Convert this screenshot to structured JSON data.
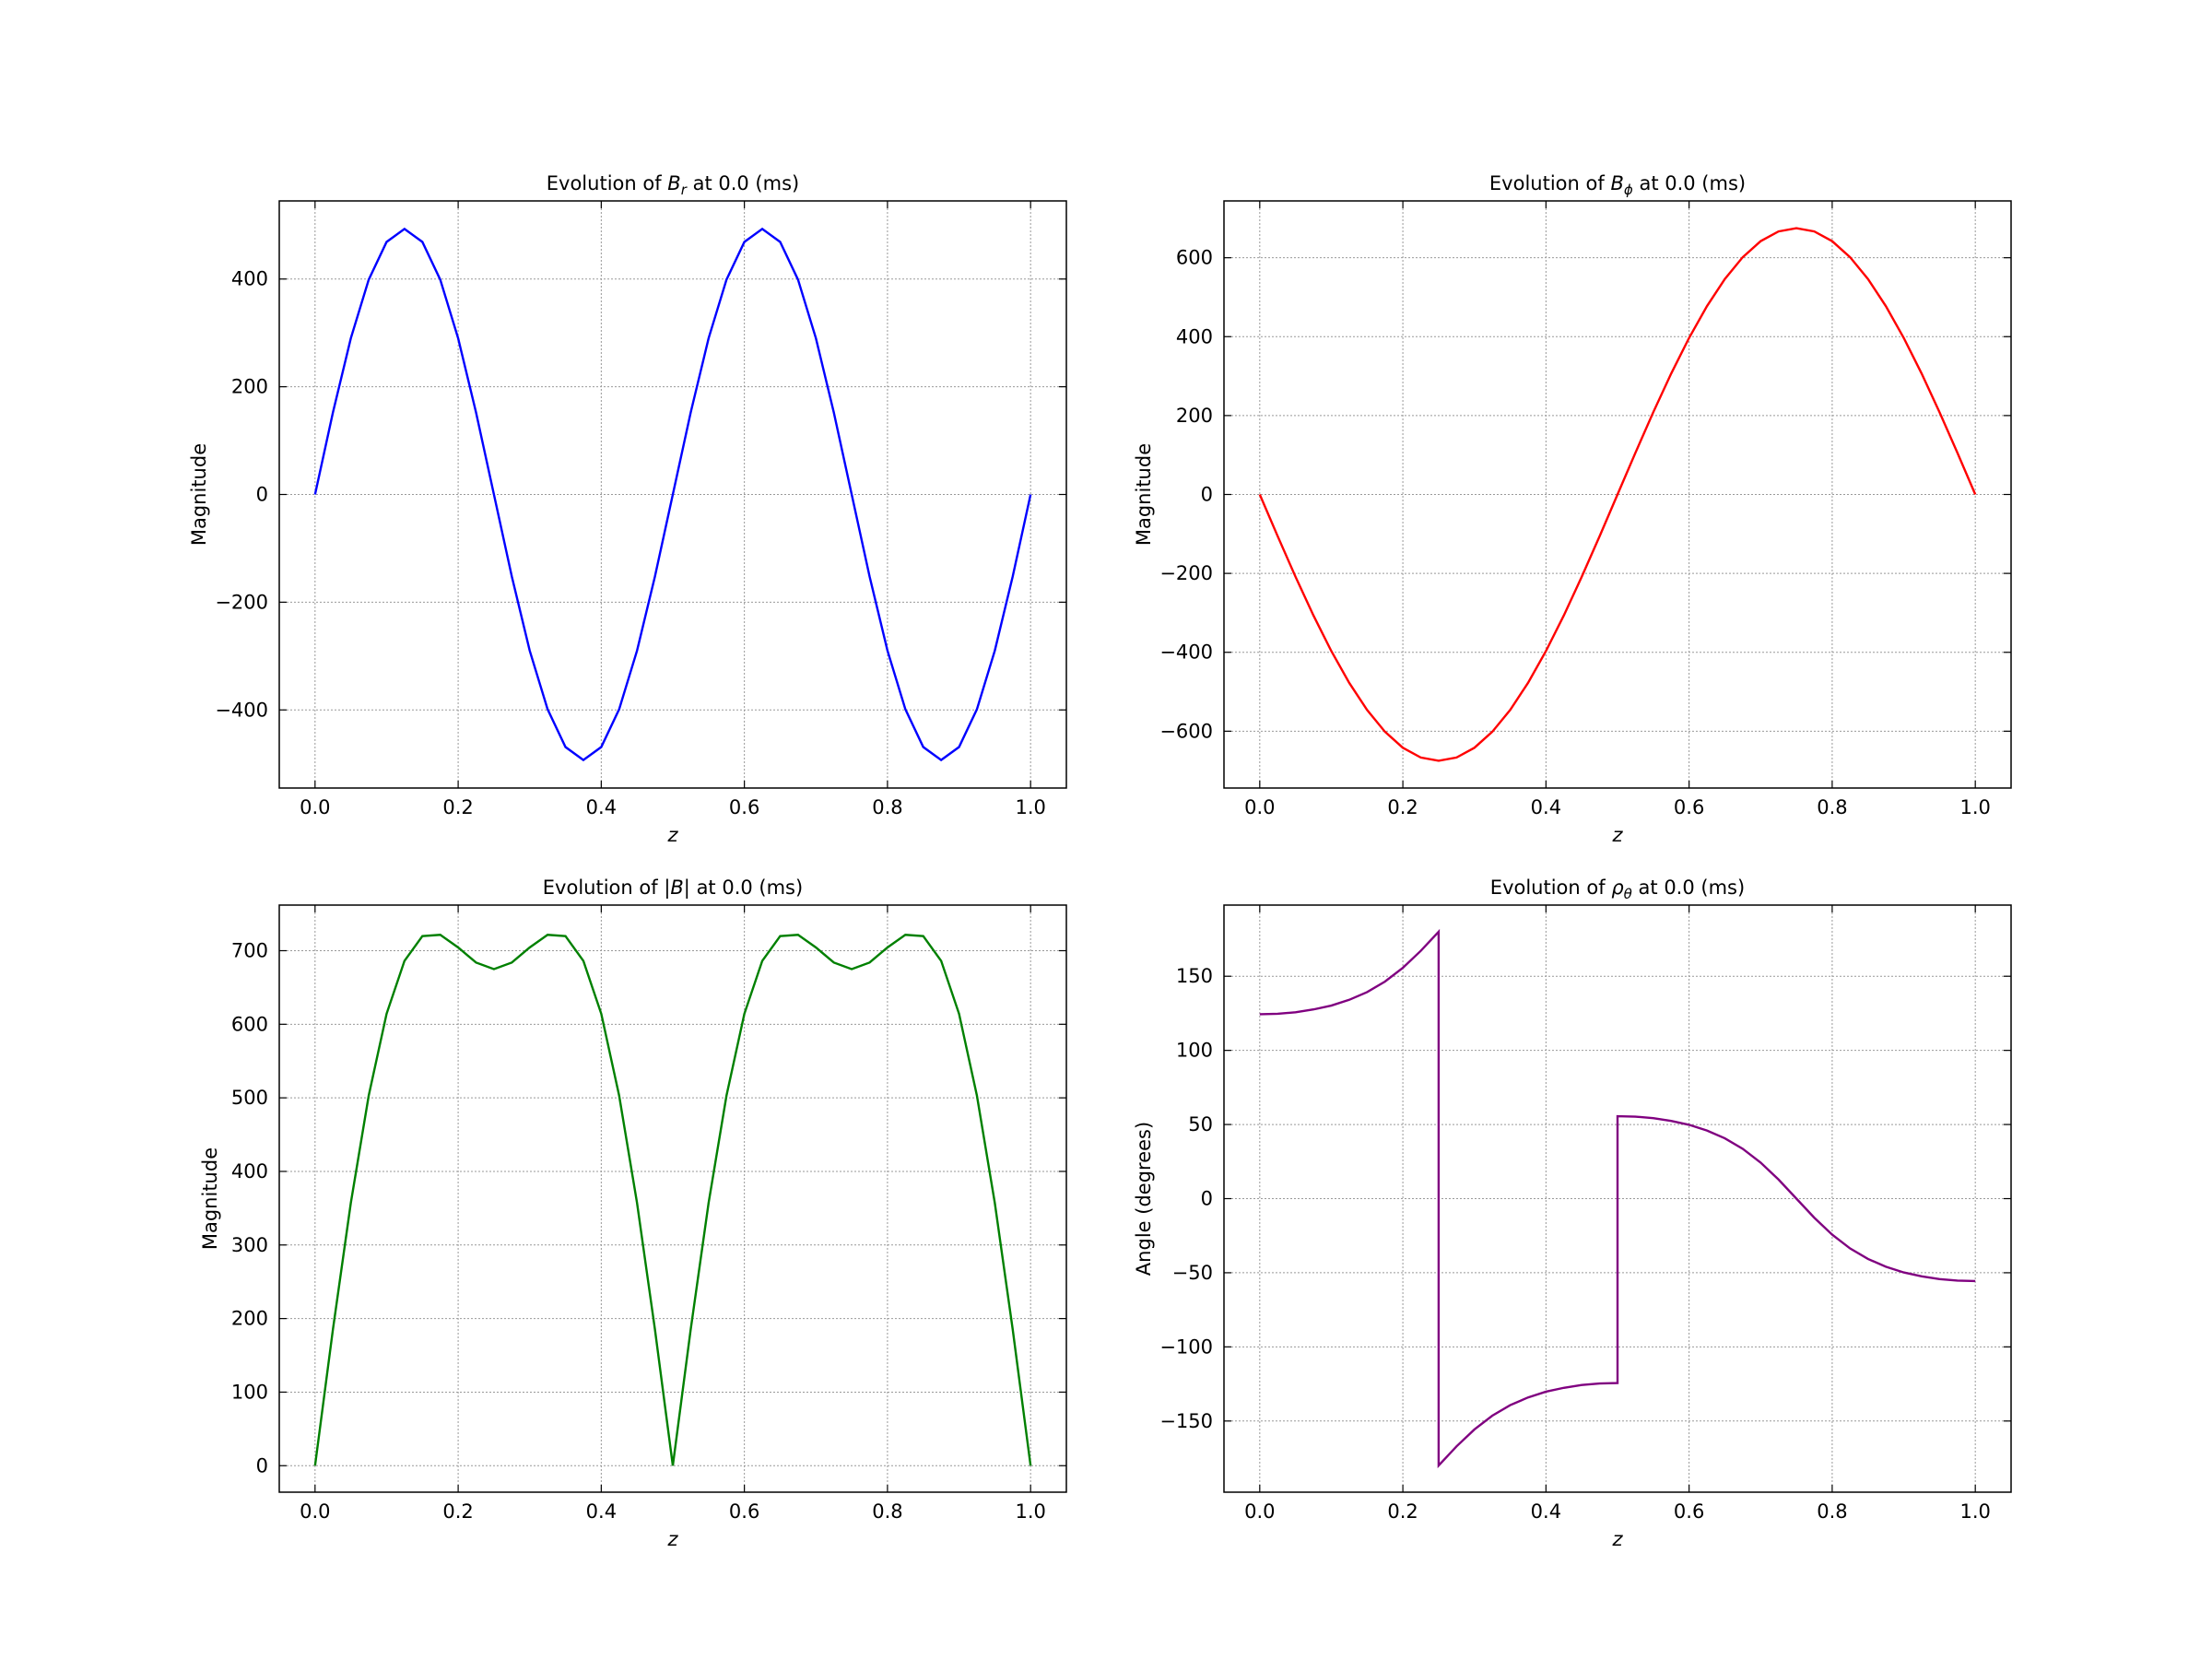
{
  "chart_data": [
    {
      "type": "line",
      "title": {
        "prefix": "Evolution of",
        "symbol": "B",
        "subscript": "r",
        "suffix": "at 0.0 (ms)"
      },
      "xlabel": "z",
      "ylabel": "Magnitude",
      "x": [
        0,
        0.025,
        0.05,
        0.075,
        0.1,
        0.125,
        0.15,
        0.175,
        0.2,
        0.225,
        0.25,
        0.275,
        0.3,
        0.325,
        0.35,
        0.375,
        0.4,
        0.425,
        0.45,
        0.475,
        0.5,
        0.525,
        0.55,
        0.575,
        0.6,
        0.625,
        0.65,
        0.675,
        0.7,
        0.725,
        0.75,
        0.775,
        0.8,
        0.825,
        0.85,
        0.875,
        0.9,
        0.925,
        0.95,
        0.975,
        1
      ],
      "series": [
        {
          "color": "#0000ff",
          "values": [
            0,
            152.3,
            289.9,
            398.8,
            468.9,
            493,
            468.9,
            398.8,
            289.9,
            152.3,
            0,
            -152.3,
            -289.9,
            -398.8,
            -468.9,
            -493,
            -468.9,
            -398.8,
            -289.9,
            -152.3,
            0,
            152.3,
            289.9,
            398.8,
            468.9,
            493,
            468.9,
            398.8,
            289.9,
            152.3,
            0,
            -152.3,
            -289.9,
            -398.8,
            -468.9,
            -493,
            -468.9,
            -398.8,
            -289.9,
            -152.3,
            0
          ]
        }
      ],
      "xlim": [
        -0.05,
        1.05
      ],
      "ylim": [
        -545,
        545
      ],
      "xticks": [
        {
          "value": 0,
          "label": "0.0"
        },
        0.2,
        0.4,
        0.6,
        0.8,
        {
          "value": 1,
          "label": "1.0"
        }
      ],
      "yticks": [
        {
          "value": -400,
          "label": "−400"
        },
        {
          "value": -200,
          "label": "−200"
        },
        0,
        200,
        400
      ],
      "grid": true
    },
    {
      "type": "line",
      "title": {
        "prefix": "Evolution of",
        "symbol": "B",
        "subscript": "ϕ",
        "suffix": "at 0.0 (ms)"
      },
      "xlabel": "z",
      "ylabel": "Magnitude",
      "x": [
        0,
        0.025,
        0.05,
        0.075,
        0.1,
        0.125,
        0.15,
        0.175,
        0.2,
        0.225,
        0.25,
        0.275,
        0.3,
        0.325,
        0.35,
        0.375,
        0.4,
        0.425,
        0.45,
        0.475,
        0.5,
        0.525,
        0.55,
        0.575,
        0.6,
        0.625,
        0.65,
        0.675,
        0.7,
        0.725,
        0.75,
        0.775,
        0.8,
        0.825,
        0.85,
        0.875,
        0.9,
        0.925,
        0.95,
        0.975,
        1
      ],
      "series": [
        {
          "color": "#ff0000",
          "values": [
            0,
            -105.6,
            -208.6,
            -306.5,
            -396.8,
            -477.3,
            -546.1,
            -601.4,
            -642,
            -666.7,
            -675,
            -666.7,
            -642,
            -601.4,
            -546.1,
            -477.3,
            -396.8,
            -306.5,
            -208.6,
            -105.6,
            0,
            105.6,
            208.6,
            306.5,
            396.8,
            477.3,
            546.1,
            601.4,
            642,
            666.7,
            675,
            666.7,
            642,
            601.4,
            546.1,
            477.3,
            396.8,
            306.5,
            208.6,
            105.6,
            0
          ]
        }
      ],
      "xlim": [
        -0.05,
        1.05
      ],
      "ylim": [
        -744,
        744
      ],
      "xticks": [
        {
          "value": 0,
          "label": "0.0"
        },
        0.2,
        0.4,
        0.6,
        0.8,
        {
          "value": 1,
          "label": "1.0"
        }
      ],
      "yticks": [
        {
          "value": -600,
          "label": "−600"
        },
        {
          "value": -400,
          "label": "−400"
        },
        {
          "value": -200,
          "label": "−200"
        },
        0,
        200,
        400,
        600
      ],
      "grid": true
    },
    {
      "type": "line",
      "title": {
        "prefix": "Evolution of",
        "symbol": "|B|",
        "suffix": "at 0.0 (ms)"
      },
      "xlabel": "z",
      "ylabel": "Magnitude",
      "x": [
        0,
        0.025,
        0.05,
        0.075,
        0.1,
        0.125,
        0.15,
        0.175,
        0.2,
        0.225,
        0.25,
        0.275,
        0.3,
        0.325,
        0.35,
        0.375,
        0.4,
        0.425,
        0.45,
        0.475,
        0.5,
        0.525,
        0.55,
        0.575,
        0.6,
        0.625,
        0.65,
        0.675,
        0.7,
        0.725,
        0.75,
        0.775,
        0.8,
        0.825,
        0.85,
        0.875,
        0.9,
        0.925,
        0.95,
        0.975,
        1
      ],
      "series": [
        {
          "color": "#008000",
          "values": [
            0,
            185.3,
            357.1,
            503,
            614.3,
            686.2,
            719.8,
            721.6,
            704.4,
            683.9,
            675,
            683.9,
            704.4,
            721.6,
            719.8,
            686.2,
            614.3,
            503,
            357.1,
            185.3,
            0,
            185.3,
            357.1,
            503,
            614.3,
            686.2,
            719.8,
            721.6,
            704.4,
            683.9,
            675,
            683.9,
            704.4,
            721.6,
            719.8,
            686.2,
            614.3,
            503,
            357.1,
            185.3,
            0
          ]
        }
      ],
      "xlim": [
        -0.05,
        1.05
      ],
      "ylim": [
        -36,
        762
      ],
      "xticks": [
        {
          "value": 0,
          "label": "0.0"
        },
        0.2,
        0.4,
        0.6,
        0.8,
        {
          "value": 1,
          "label": "1.0"
        }
      ],
      "yticks": [
        0,
        100,
        200,
        300,
        400,
        500,
        600,
        700
      ],
      "grid": true
    },
    {
      "type": "line",
      "title": {
        "prefix": "Evolution of",
        "symbol": "ρ",
        "subscript": "θ",
        "suffix": "at 0.0 (ms)"
      },
      "xlabel": "z",
      "ylabel": "Angle (degrees)",
      "x": [
        0,
        0.025,
        0.05,
        0.075,
        0.1,
        0.125,
        0.15,
        0.175,
        0.2,
        0.225,
        0.25,
        0.25,
        0.275,
        0.3,
        0.325,
        0.35,
        0.375,
        0.4,
        0.425,
        0.45,
        0.475,
        0.5,
        0.5,
        0.525,
        0.55,
        0.575,
        0.6,
        0.625,
        0.65,
        0.675,
        0.7,
        0.725,
        0.75,
        0.775,
        0.8,
        0.825,
        0.85,
        0.875,
        0.9,
        0.925,
        0.95,
        0.975,
        1
      ],
      "series": [
        {
          "color": "#800080",
          "values": [
            124.4,
            124.7,
            125.7,
            127.6,
            130.2,
            134.1,
            139.3,
            146.4,
            155.7,
            167.1,
            180,
            -180,
            -167.1,
            -155.7,
            -146.4,
            -139.3,
            -134.1,
            -130.2,
            -127.6,
            -125.7,
            -124.7,
            -124.4,
            55.6,
            55.3,
            54.3,
            52.4,
            49.8,
            45.9,
            40.7,
            33.6,
            24.3,
            12.9,
            0,
            -12.9,
            -24.3,
            -33.6,
            -40.7,
            -45.9,
            -49.8,
            -52.4,
            -54.3,
            -55.3,
            -55.6
          ]
        }
      ],
      "xlim": [
        -0.05,
        1.05
      ],
      "ylim": [
        -198,
        198
      ],
      "xticks": [
        {
          "value": 0,
          "label": "0.0"
        },
        0.2,
        0.4,
        0.6,
        0.8,
        {
          "value": 1,
          "label": "1.0"
        }
      ],
      "yticks": [
        {
          "value": -150,
          "label": "−150"
        },
        {
          "value": -100,
          "label": "−100"
        },
        {
          "value": -50,
          "label": "−50"
        },
        0,
        50,
        100,
        150
      ],
      "grid": true
    }
  ]
}
